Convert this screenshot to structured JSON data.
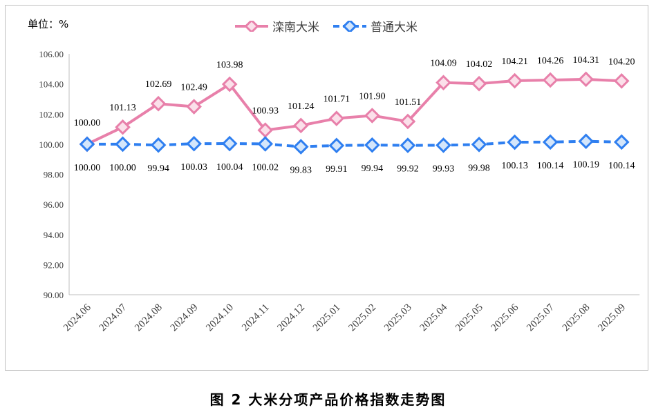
{
  "caption": "图 2  大米分项产品价格指数走势图",
  "chart_data": {
    "type": "line",
    "unit_label": "单位：%",
    "categories": [
      "2024.06",
      "2024.07",
      "2024.08",
      "2024.09",
      "2024.10",
      "2024.11",
      "2024.12",
      "2025.01",
      "2025.02",
      "2025.03",
      "2025.04",
      "2025.05",
      "2025.06",
      "2025.07",
      "2025.08",
      "2025.09"
    ],
    "ylim": [
      90,
      106
    ],
    "yticks": [
      "90.00",
      "92.00",
      "94.00",
      "96.00",
      "98.00",
      "100.00",
      "102.00",
      "104.00",
      "106.00"
    ],
    "series": [
      {
        "name": "滦南大米",
        "color": "#e880aa",
        "marker_fill": "#fbe0ea",
        "line_style": "solid",
        "values": [
          100.0,
          101.13,
          102.69,
          102.49,
          103.98,
          100.93,
          101.24,
          101.71,
          101.9,
          101.51,
          104.09,
          104.02,
          104.21,
          104.26,
          104.31,
          104.2
        ],
        "labels": [
          "100.00",
          "101.13",
          "102.69",
          "102.49",
          "103.98",
          "100.93",
          "101.24",
          "101.71",
          "101.90",
          "101.51",
          "104.09",
          "104.02",
          "104.21",
          "104.26",
          "104.31",
          "104.20"
        ]
      },
      {
        "name": "普通大米",
        "color": "#2f7ff0",
        "marker_fill": "#d4e6fb",
        "line_style": "dashed",
        "values": [
          100.0,
          100.0,
          99.94,
          100.03,
          100.04,
          100.02,
          99.83,
          99.91,
          99.94,
          99.92,
          99.93,
          99.98,
          100.13,
          100.14,
          100.19,
          100.14
        ],
        "labels": [
          "100.00",
          "100.00",
          "99.94",
          "100.03",
          "100.04",
          "100.02",
          "99.83",
          "99.91",
          "99.94",
          "99.92",
          "99.93",
          "99.98",
          "100.13",
          "100.14",
          "100.19",
          "100.14"
        ]
      }
    ],
    "legend": "top-center",
    "grid": false
  }
}
